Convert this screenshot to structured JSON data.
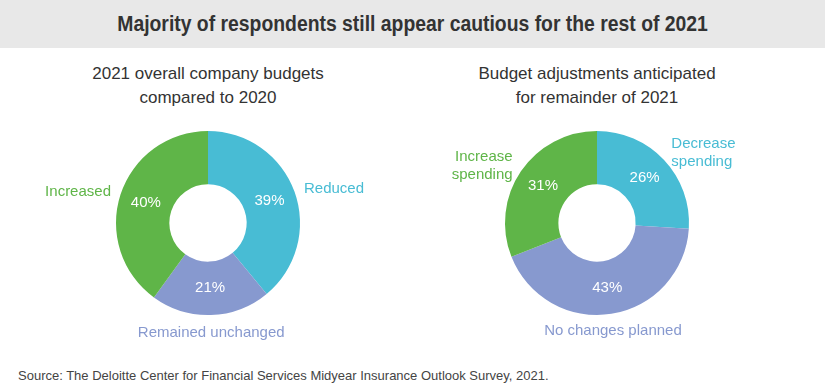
{
  "title": "Majority of respondents still appear cautious for the rest of 2021",
  "source": "Source: The Deloitte Center for Financial Services Midyear Insurance Outlook Survey, 2021.",
  "chart_data": [
    {
      "type": "doughnut",
      "title": "2021 overall company budgets compared to 2020",
      "categories": [
        "Reduced",
        "Remained unchanged",
        "Increased"
      ],
      "values": [
        39,
        21,
        40
      ],
      "value_labels": [
        "39%",
        "21%",
        "40%"
      ],
      "colors": [
        "#48bcd4",
        "#8799cf",
        "#5fb548"
      ],
      "data_labels": true
    },
    {
      "type": "doughnut",
      "title": "Budget adjustments anticipated for remainder of 2021",
      "categories": [
        "Decrease spending",
        "No changes planned",
        "Increase spending"
      ],
      "values": [
        26,
        43,
        31
      ],
      "value_labels": [
        "26%",
        "43%",
        "31%"
      ],
      "colors": [
        "#48bcd4",
        "#8799cf",
        "#5fb548"
      ],
      "data_labels": true
    }
  ]
}
